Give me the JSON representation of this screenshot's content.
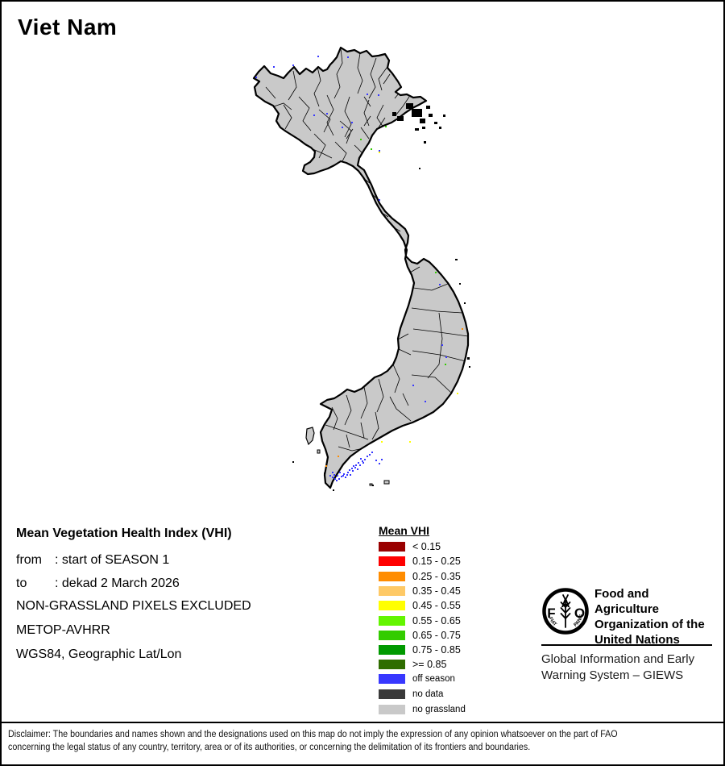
{
  "page": {
    "title": "Viet Nam",
    "background_color": "#FFFFFF",
    "border_color": "#000000"
  },
  "info_block": {
    "heading": "Mean Vegetation Health Index (VHI)",
    "separator": ":",
    "rows": [
      {
        "label": "from",
        "value": "start of SEASON 1"
      },
      {
        "label": "to",
        "value": "dekad 2 March 2026"
      }
    ],
    "lines": [
      "NON-GRASSLAND PIXELS EXCLUDED",
      "METOP-AVHRR",
      "WGS84, Geographic Lat/Lon"
    ]
  },
  "legend": {
    "title": "Mean VHI",
    "items": [
      {
        "label": "< 0.15",
        "color": "#990000"
      },
      {
        "label": "0.15 - 0.25",
        "color": "#FF0000"
      },
      {
        "label": "0.25 - 0.35",
        "color": "#FF8C00"
      },
      {
        "label": "0.35 - 0.45",
        "color": "#FEC966"
      },
      {
        "label": "0.45 - 0.55",
        "color": "#FFFF00"
      },
      {
        "label": "0.55 - 0.65",
        "color": "#63F500"
      },
      {
        "label": "0.65 - 0.75",
        "color": "#33CC00"
      },
      {
        "label": "0.75 - 0.85",
        "color": "#009A00"
      },
      {
        "label": ">= 0.85",
        "color": "#2F6D00"
      }
    ],
    "extra_items": [
      {
        "label": "off season",
        "color": "#3838FF"
      },
      {
        "label": "no data",
        "color": "#3A3A3A"
      },
      {
        "label": "no grassland",
        "color": "#C9C9C9"
      }
    ]
  },
  "map": {
    "country": "Viet Nam",
    "land_color": "#C9C9C9",
    "boundary_color": "#000000",
    "off_season_color": "#3838FF",
    "dot_colors": {
      "blue": "#3838FF",
      "green": "#33CC00",
      "yellow": "#FFFF00",
      "orange": "#FF8C00"
    }
  },
  "fao": {
    "logo_letters": "FAO",
    "logo_motto": "FIAT PANIS",
    "org_lines": [
      "Food and Agriculture",
      "Organization of the",
      "United Nations"
    ],
    "giews_lines": [
      "Global Information and Early",
      "Warning System – GIEWS"
    ]
  },
  "disclaimer": {
    "line1": "Disclaimer: The boundaries and names shown and the designations used on this map do not imply the expression of any opinion whatsoever on the part of FAO",
    "line2": "concerning the legal status of any country, territory, area or of its authorities, or concerning the delimitation of its frontiers and boundaries."
  }
}
